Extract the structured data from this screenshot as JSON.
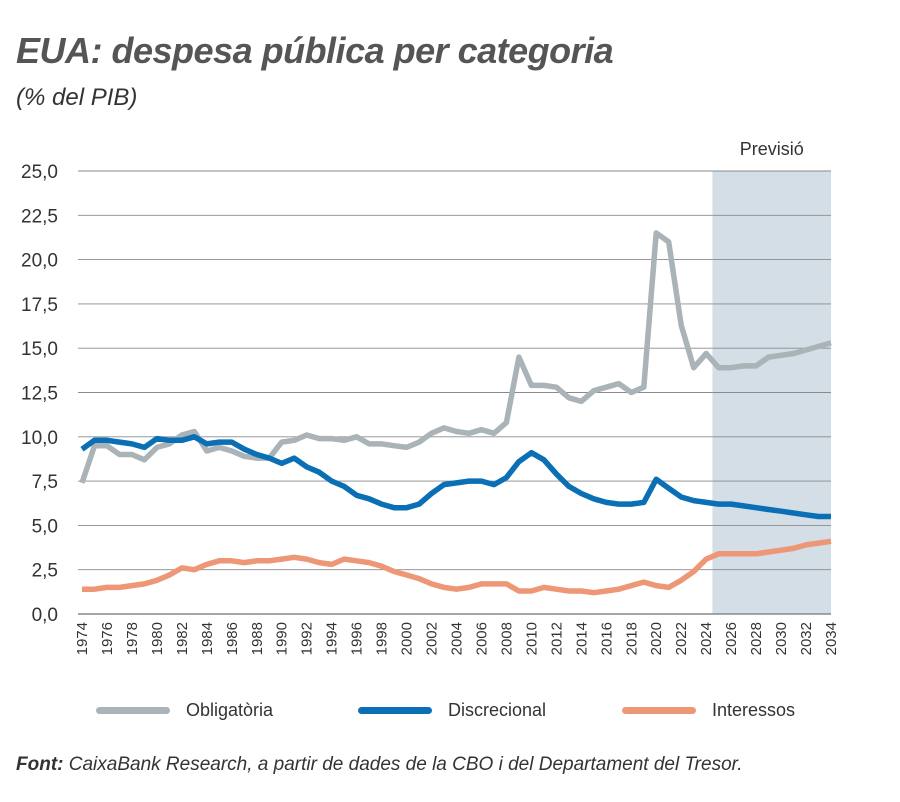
{
  "header": {
    "title": "EUA: despesa pública per categoria",
    "subtitle": "(% del PIB)"
  },
  "forecast_label": "Previsió",
  "source": {
    "prefix": "Font:",
    "text": "CaixaBank Research, a partir de dades de la CBO i del Departament del Tresor."
  },
  "colors": {
    "obligatoria": "#a9b3b8",
    "discrecional": "#0a6fb5",
    "interessos": "#ee9777",
    "forecast_band": "#d3dee6",
    "grid": "#8a8a8a"
  },
  "chart_data": {
    "type": "line",
    "title": "EUA: despesa pública per categoria",
    "ylabel": "(% del PIB)",
    "ylim": [
      0,
      25
    ],
    "yticks": [
      "0,0",
      "2,5",
      "5,0",
      "7,5",
      "10,0",
      "12,5",
      "15,0",
      "17,5",
      "20,0",
      "22,5",
      "25,0"
    ],
    "x": [
      1974,
      1975,
      1976,
      1977,
      1978,
      1979,
      1980,
      1981,
      1982,
      1983,
      1984,
      1985,
      1986,
      1987,
      1988,
      1989,
      1990,
      1991,
      1992,
      1993,
      1994,
      1995,
      1996,
      1997,
      1998,
      1999,
      2000,
      2001,
      2002,
      2003,
      2004,
      2005,
      2006,
      2007,
      2008,
      2009,
      2010,
      2011,
      2012,
      2013,
      2014,
      2015,
      2016,
      2017,
      2018,
      2019,
      2020,
      2021,
      2022,
      2023,
      2024,
      2025,
      2026,
      2027,
      2028,
      2029,
      2030,
      2031,
      2032,
      2033,
      2034
    ],
    "xticks": [
      1974,
      1976,
      1978,
      1980,
      1982,
      1984,
      1986,
      1988,
      1990,
      1992,
      1994,
      1996,
      1998,
      2000,
      2002,
      2004,
      2006,
      2008,
      2010,
      2012,
      2014,
      2016,
      2018,
      2020,
      2022,
      2024,
      2026,
      2028,
      2030,
      2032,
      2034
    ],
    "forecast_from": 2024.5,
    "grid": "horizontal",
    "legend_position": "bottom",
    "series": [
      {
        "name": "Obligatòria",
        "color": "#a9b3b8",
        "values": [
          7.4,
          9.5,
          9.5,
          9.0,
          9.0,
          8.7,
          9.4,
          9.6,
          10.1,
          10.3,
          9.2,
          9.4,
          9.2,
          8.9,
          8.8,
          8.8,
          9.7,
          9.8,
          10.1,
          9.9,
          9.9,
          9.8,
          10.0,
          9.6,
          9.6,
          9.5,
          9.4,
          9.7,
          10.2,
          10.5,
          10.3,
          10.2,
          10.4,
          10.2,
          10.8,
          14.5,
          12.9,
          12.9,
          12.8,
          12.2,
          12.0,
          12.6,
          12.8,
          13.0,
          12.5,
          12.8,
          21.5,
          21.0,
          16.3,
          13.9,
          14.7,
          13.9,
          13.9,
          14.0,
          14.0,
          14.5,
          14.6,
          14.7,
          14.9,
          15.1,
          15.3
        ]
      },
      {
        "name": "Discrecional",
        "color": "#0a6fb5",
        "values": [
          9.3,
          9.8,
          9.8,
          9.7,
          9.6,
          9.4,
          9.9,
          9.8,
          9.8,
          10.0,
          9.6,
          9.7,
          9.7,
          9.3,
          9.0,
          8.8,
          8.5,
          8.8,
          8.3,
          8.0,
          7.5,
          7.2,
          6.7,
          6.5,
          6.2,
          6.0,
          6.0,
          6.2,
          6.8,
          7.3,
          7.4,
          7.5,
          7.5,
          7.3,
          7.7,
          8.6,
          9.1,
          8.7,
          7.9,
          7.2,
          6.8,
          6.5,
          6.3,
          6.2,
          6.2,
          6.3,
          7.6,
          7.1,
          6.6,
          6.4,
          6.3,
          6.2,
          6.2,
          6.1,
          6.0,
          5.9,
          5.8,
          5.7,
          5.6,
          5.5,
          5.5
        ]
      },
      {
        "name": "Interessos",
        "color": "#ee9777",
        "values": [
          1.4,
          1.4,
          1.5,
          1.5,
          1.6,
          1.7,
          1.9,
          2.2,
          2.6,
          2.5,
          2.8,
          3.0,
          3.0,
          2.9,
          3.0,
          3.0,
          3.1,
          3.2,
          3.1,
          2.9,
          2.8,
          3.1,
          3.0,
          2.9,
          2.7,
          2.4,
          2.2,
          2.0,
          1.7,
          1.5,
          1.4,
          1.5,
          1.7,
          1.7,
          1.7,
          1.3,
          1.3,
          1.5,
          1.4,
          1.3,
          1.3,
          1.2,
          1.3,
          1.4,
          1.6,
          1.8,
          1.6,
          1.5,
          1.9,
          2.4,
          3.1,
          3.4,
          3.4,
          3.4,
          3.4,
          3.5,
          3.6,
          3.7,
          3.9,
          4.0,
          4.1
        ]
      }
    ]
  }
}
